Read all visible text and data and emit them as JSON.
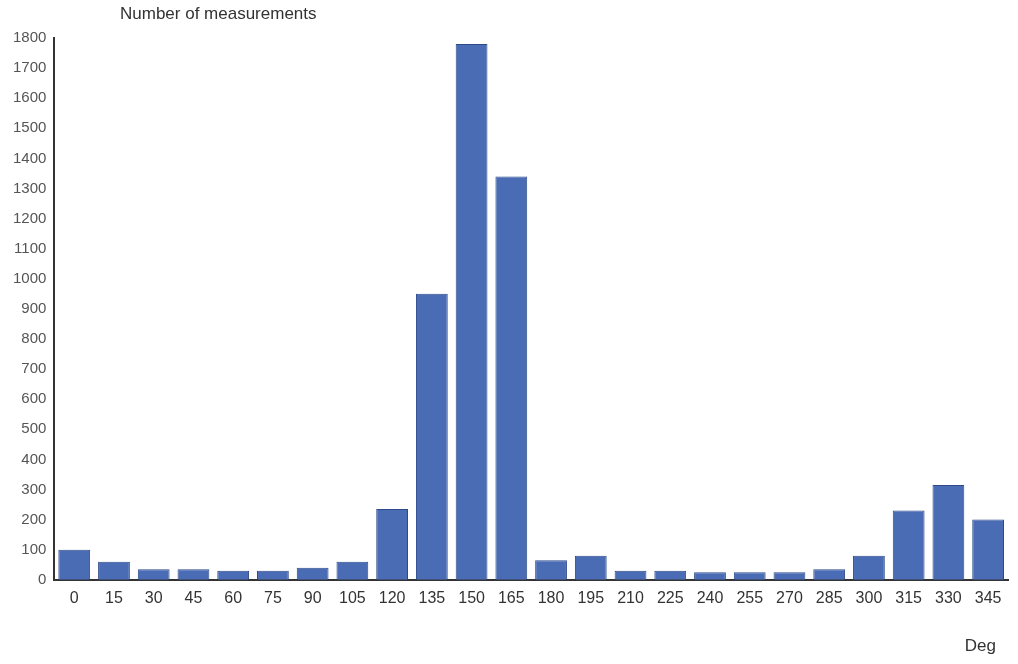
{
  "chart_data": {
    "type": "bar",
    "ylabel": "Number of measurements",
    "xlabel": "Deg",
    "categories": [
      "0",
      "15",
      "30",
      "45",
      "60",
      "75",
      "90",
      "105",
      "120",
      "135",
      "150",
      "165",
      "180",
      "195",
      "210",
      "225",
      "240",
      "255",
      "270",
      "285",
      "300",
      "315",
      "330",
      "345"
    ],
    "values": [
      100,
      60,
      35,
      35,
      30,
      30,
      40,
      60,
      235,
      950,
      1780,
      1340,
      65,
      80,
      30,
      30,
      25,
      25,
      25,
      35,
      80,
      230,
      315,
      200
    ],
    "color": "#4a6cb5",
    "ylim": [
      0,
      1800
    ],
    "yticks": [
      0,
      100,
      200,
      300,
      400,
      500,
      600,
      700,
      800,
      900,
      1000,
      1100,
      1200,
      1300,
      1400,
      1500,
      1600,
      1700,
      1800
    ],
    "grid": false,
    "legend": false
  }
}
